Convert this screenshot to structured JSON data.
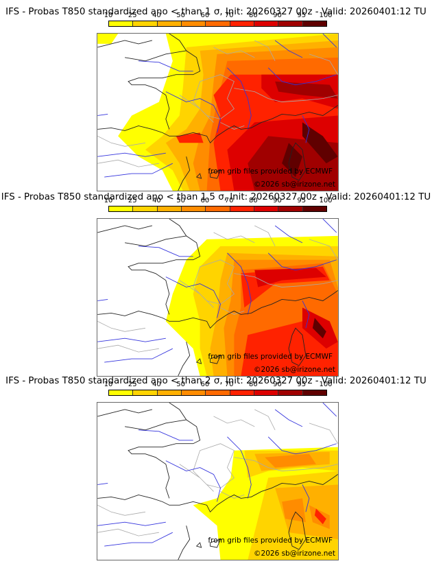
{
  "legend": {
    "ticks": [
      "10",
      "25",
      "40",
      "50",
      "60",
      "70",
      "80",
      "90",
      "95",
      "100"
    ],
    "colors": [
      "#ffff00",
      "#ffd400",
      "#ffb000",
      "#ff8c00",
      "#ff6a00",
      "#ff2200",
      "#dd0000",
      "#a00000",
      "#600000"
    ]
  },
  "panels": [
    {
      "title": "IFS - Probas T850  standardized ano < than 1 σ, Init: 20260327 00z - Valid: 20260401:12 TU",
      "threshold": "1",
      "credit_source": "from grib files provided by ECMWF",
      "credit_copyright": "©2026 sb@irizone.net"
    },
    {
      "title": "IFS - Probas T850  standardized ano < than 1.5 σ, Init: 20260327 00z - Valid: 20260401:12 TU",
      "threshold": "1.5",
      "credit_source": "from grib files provided by ECMWF",
      "credit_copyright": "©2026 sb@irizone.net"
    },
    {
      "title": "IFS - Probas T850  standardized ano < than 2 σ, Init: 20260327 00z - Valid: 20260401:12 TU",
      "threshold": "2",
      "credit_source": "from grib files provided by ECMWF",
      "credit_copyright": "©2026 sb@irizone.net"
    }
  ],
  "colors": {
    "coast": "#222222",
    "rivers": "#3333dd",
    "borders": "#aaaaaa"
  }
}
